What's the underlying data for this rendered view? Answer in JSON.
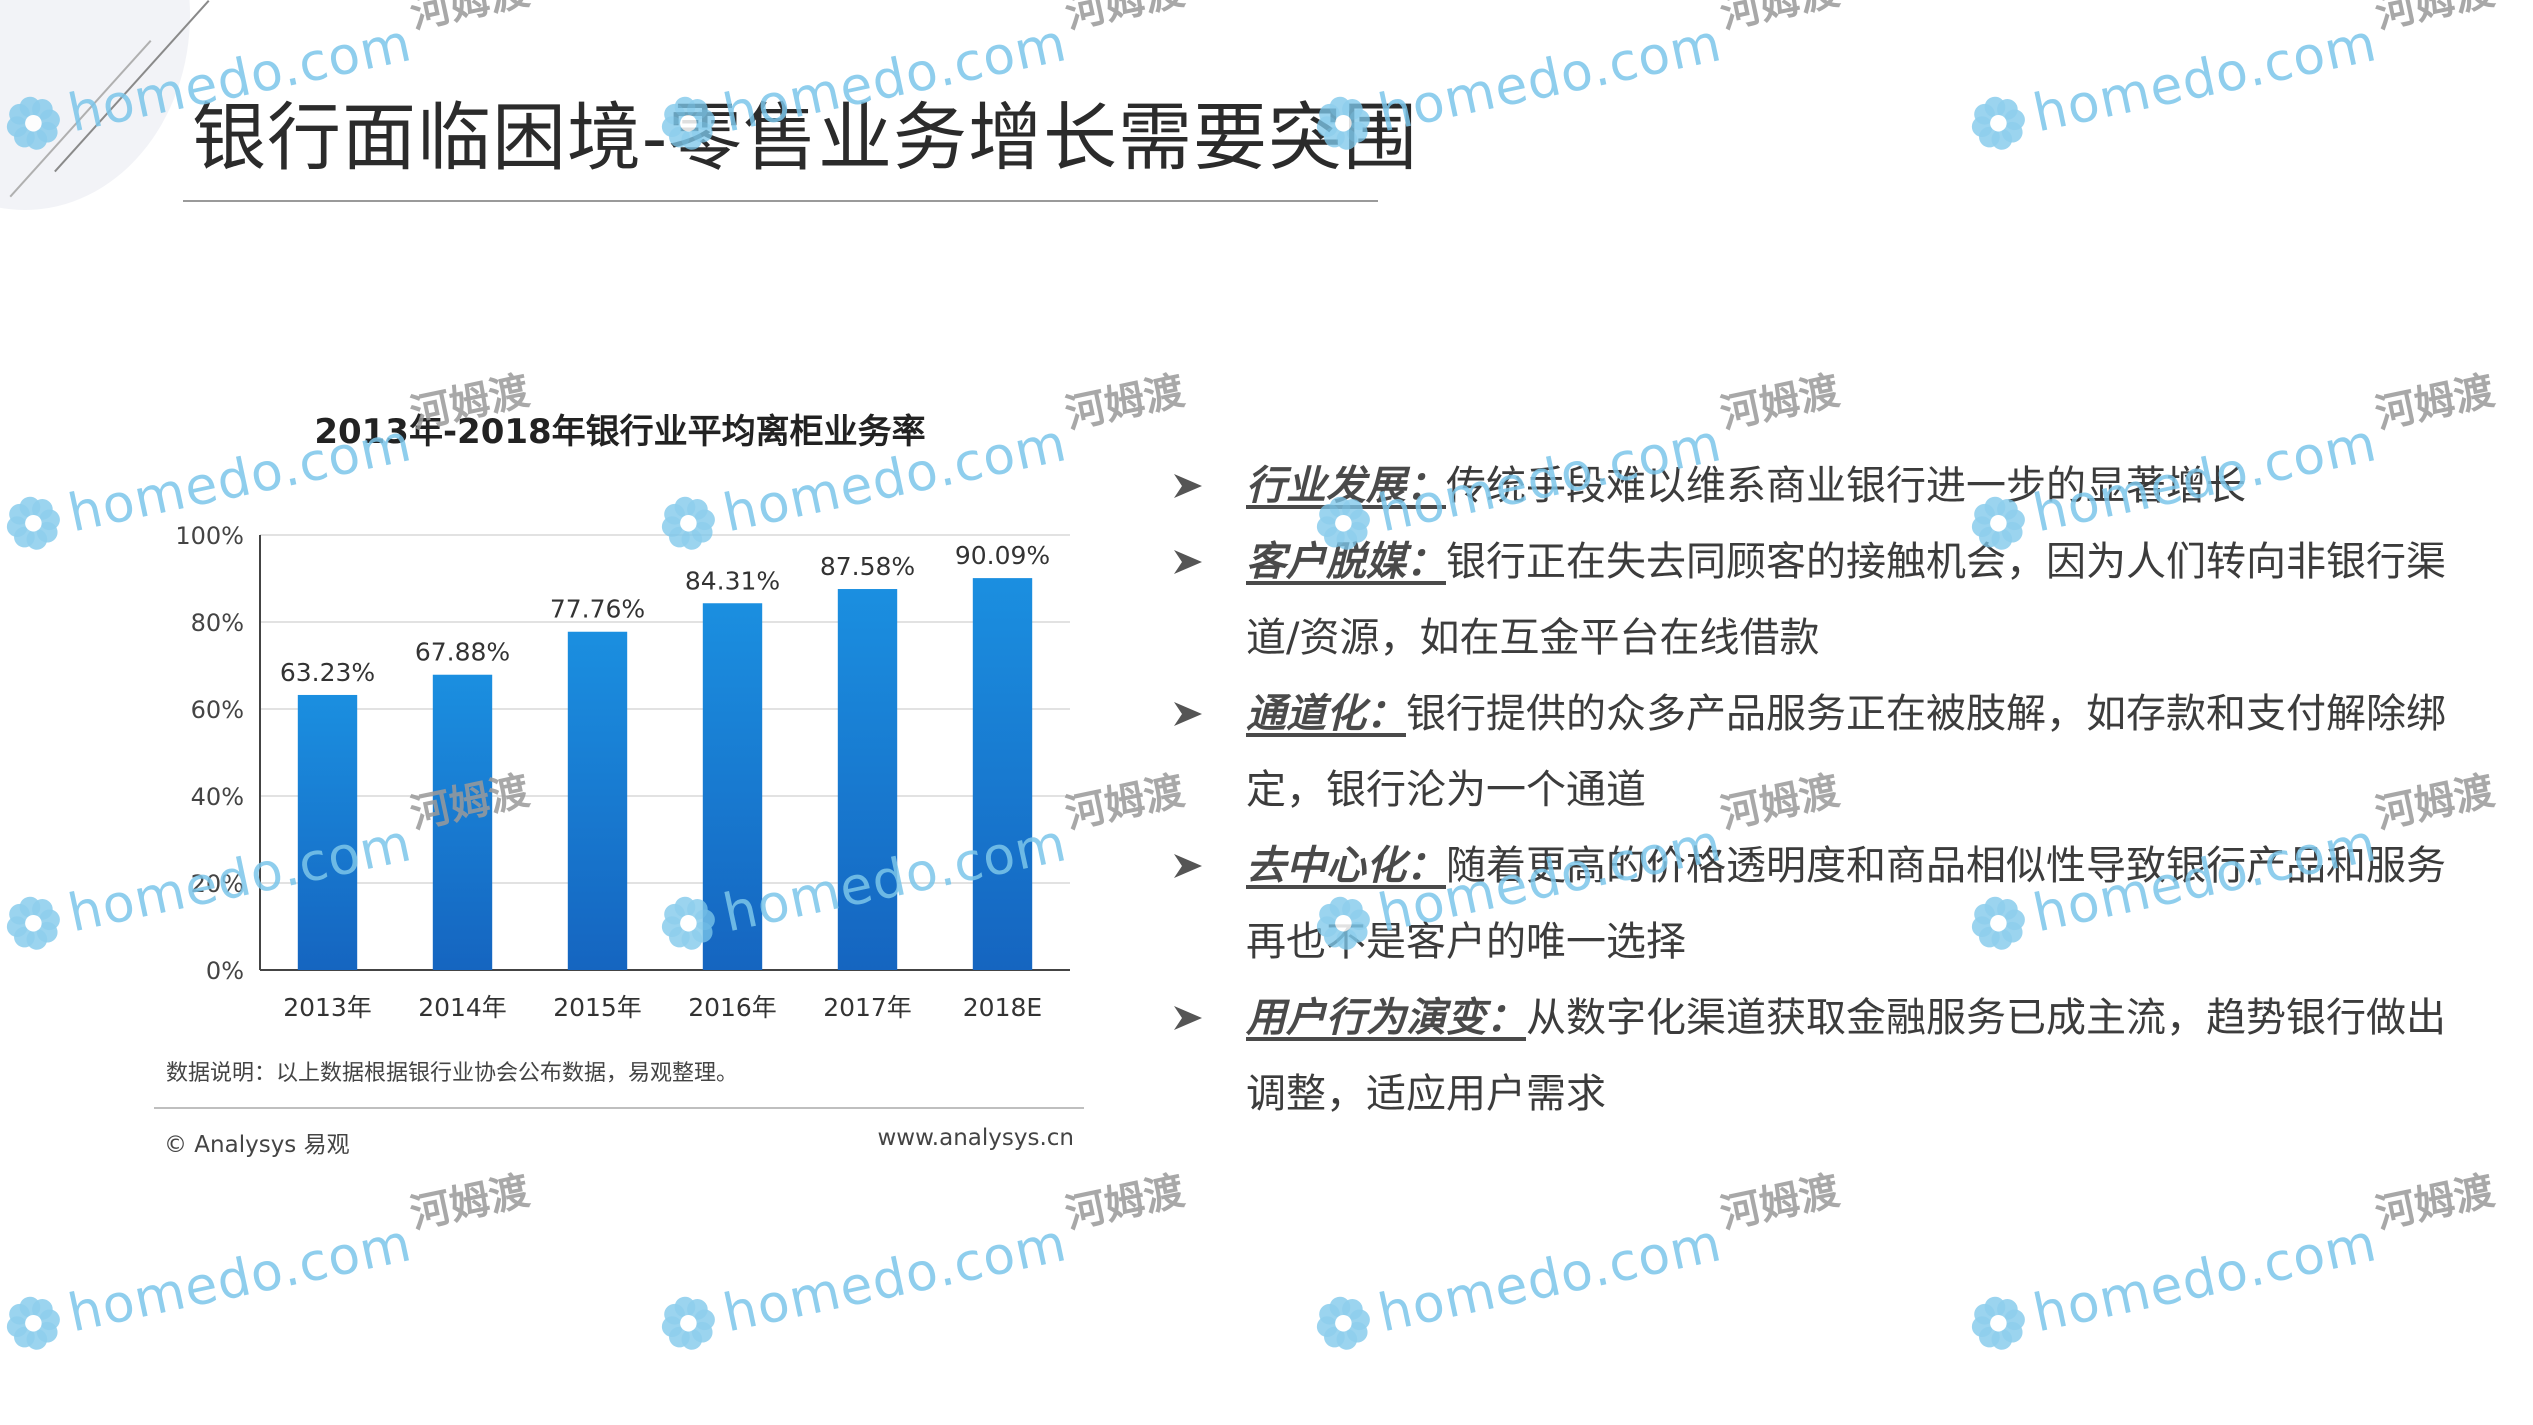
{
  "title": "银行面临困境-零售业务增长需要突围",
  "chart_data": {
    "type": "bar",
    "title": "2013年-2018年银行业平均离柜业务率",
    "categories": [
      "2013年",
      "2014年",
      "2015年",
      "2016年",
      "2017年",
      "2018E"
    ],
    "values": [
      63.23,
      67.88,
      77.76,
      84.31,
      87.58,
      90.09
    ],
    "value_labels": [
      "63.23%",
      "67.88%",
      "77.76%",
      "84.31%",
      "87.58%",
      "90.09%"
    ],
    "ylim": [
      0,
      100
    ],
    "yticks": [
      "0%",
      "20%",
      "40%",
      "60%",
      "80%",
      "100%"
    ],
    "grid": true,
    "bar_color_top": "#1b8fe0",
    "bar_color_bottom": "#1565c0",
    "note": "数据说明：以上数据根据银行业协会公布数据，易观整理。",
    "footer_left": "© Analysys 易观",
    "footer_right": "www.analysys.cn"
  },
  "bullets": [
    {
      "key": "行业发展：",
      "text": "传统手段难以维系商业银行进一步的显著增长"
    },
    {
      "key": "客户脱媒：",
      "text": "银行正在失去同顾客的接触机会，因为人们转向非银行渠道/资源，如在互金平台在线借款"
    },
    {
      "key": "通道化：",
      "text": "银行提供的众多产品服务正在被肢解，如存款和支付解除绑定，银行沦为一个通道"
    },
    {
      "key": "去中心化：",
      "text": "随着更高的价格透明度和商品相似性导致银行产品和服务再也不是客户的唯一选择"
    },
    {
      "key": "用户行为演变：",
      "text": "从数字化渠道获取金融服务已成主流，趋势银行做出调整，适应用户需求"
    }
  ],
  "watermark": {
    "text": "homedo.com",
    "cn": "河姆渡",
    "icon": "flower-logo-icon",
    "color": "#7cc6ea"
  }
}
